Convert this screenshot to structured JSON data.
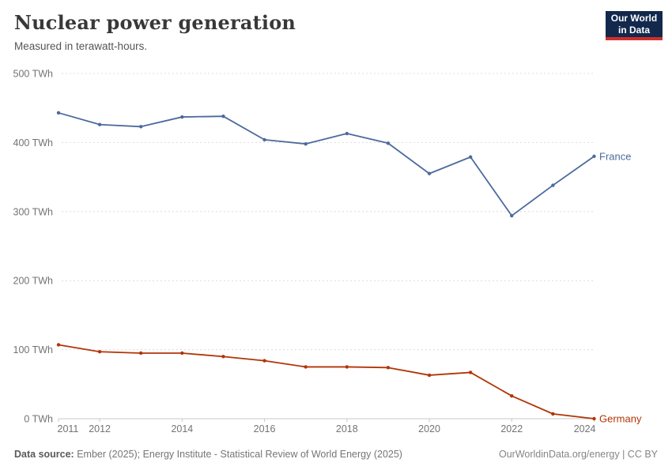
{
  "header": {
    "title": "Nuclear power generation",
    "subtitle": "Measured in terawatt-hours.",
    "logo": {
      "line1": "Our World",
      "line2": "in Data",
      "bg_color": "#12294d",
      "accent_color": "#ce302b"
    }
  },
  "chart_data": {
    "type": "line",
    "x": [
      2011,
      2012,
      2013,
      2014,
      2015,
      2016,
      2017,
      2018,
      2019,
      2020,
      2021,
      2022,
      2023,
      2024
    ],
    "series": [
      {
        "name": "France",
        "color": "#4c6a9c",
        "values": [
          443,
          426,
          423,
          437,
          438,
          404,
          398,
          413,
          399,
          355,
          379,
          294,
          338,
          380
        ]
      },
      {
        "name": "Germany",
        "color": "#b13507",
        "values": [
          107,
          97,
          95,
          95,
          90,
          84,
          75,
          75,
          74,
          63,
          67,
          33,
          7,
          0
        ]
      }
    ],
    "title": "Nuclear power generation",
    "subtitle": "Measured in terawatt-hours.",
    "ylabel_suffix": " TWh",
    "yticks": [
      0,
      100,
      200,
      300,
      400,
      500
    ],
    "xticks": [
      2011,
      2012,
      2014,
      2016,
      2018,
      2020,
      2022,
      2024
    ],
    "ylim": [
      0,
      500
    ],
    "xlim": [
      2011,
      2024
    ],
    "grid": "horizontal-dashed",
    "legend": "end-of-line-labels",
    "grid_color": "#dcdcdc",
    "axis_color": "#c8c8c8",
    "tick_label_color": "#737373"
  },
  "footer": {
    "source_label": "Data source:",
    "source_text": " Ember (2025); Energy Institute - Statistical Review of World Energy (2025)",
    "credit": "OurWorldinData.org/energy | CC BY"
  }
}
